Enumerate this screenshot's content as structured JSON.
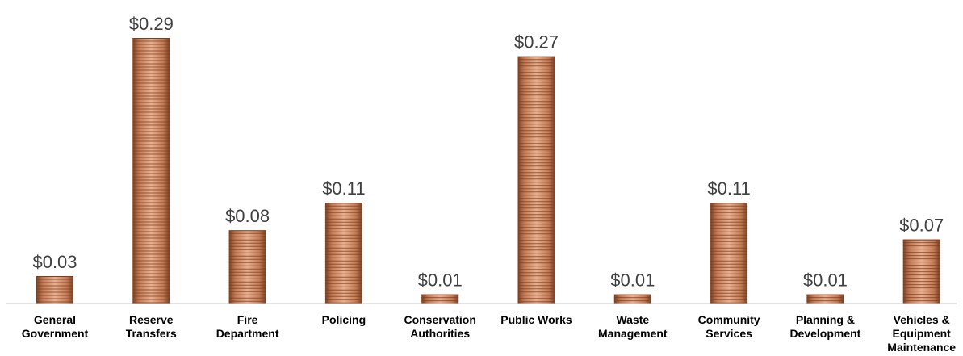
{
  "chart_data": {
    "type": "bar",
    "title": "",
    "xlabel": "",
    "ylabel": "",
    "value_prefix": "$",
    "categories": [
      [
        "General",
        "Government"
      ],
      [
        "Reserve",
        "Transfers"
      ],
      [
        "Fire",
        "Department"
      ],
      [
        "Policing"
      ],
      [
        "Conservation",
        "Authorities"
      ],
      [
        "Public Works"
      ],
      [
        "Waste",
        "Management"
      ],
      [
        "Community",
        "Services"
      ],
      [
        "Planning &",
        "Development"
      ],
      [
        "Vehicles &",
        "Equipment",
        "Maintenance"
      ]
    ],
    "values": [
      0.03,
      0.29,
      0.08,
      0.11,
      0.01,
      0.27,
      0.01,
      0.11,
      0.01,
      0.07
    ],
    "value_labels": [
      "$0.03",
      "$0.29",
      "$0.08",
      "$0.11",
      "$0.01",
      "$0.27",
      "$0.01",
      "$0.11",
      "$0.01",
      "$0.07"
    ],
    "ylim": [
      0,
      0.29
    ],
    "grid": false,
    "legend": "none",
    "bar_style": "stacked-coins",
    "colors": {
      "coin_light": "#e0a07e",
      "coin_mid": "#c47c56",
      "coin_dark": "#7a3f22",
      "axis": "#c8c8c8",
      "value_text": "#404040",
      "category_text": "#000000"
    }
  }
}
